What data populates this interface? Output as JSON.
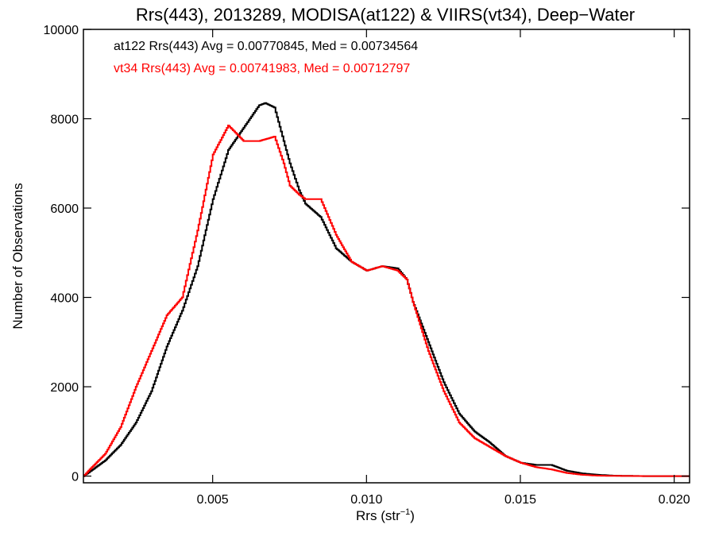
{
  "chart_data": {
    "type": "line",
    "title": "Rrs(443), 2013289, MODISA(at122) & VIIRS(vt34), Deep−Water",
    "xlabel_main": "Rrs (str",
    "xlabel_sup": "−1",
    "xlabel_close": ")",
    "ylabel": "Number of Observations",
    "xlim": [
      0.0008,
      0.0205
    ],
    "ylim": [
      -150,
      10000
    ],
    "xticks": [
      {
        "value": 0.005,
        "label": "0.005"
      },
      {
        "value": 0.01,
        "label": "0.010"
      },
      {
        "value": 0.015,
        "label": "0.015"
      },
      {
        "value": 0.02,
        "label": "0.020"
      }
    ],
    "yticks": [
      {
        "value": 0,
        "label": "0"
      },
      {
        "value": 2000,
        "label": "2000"
      },
      {
        "value": 4000,
        "label": "4000"
      },
      {
        "value": 6000,
        "label": "6000"
      },
      {
        "value": 8000,
        "label": "8000"
      },
      {
        "value": 10000,
        "label": "10000"
      }
    ],
    "legend": [
      {
        "text": "at122 Rrs(443) Avg = 0.00770845, Med = 0.00734564",
        "color": "#000000"
      },
      {
        "text": "vt34 Rrs(443) Avg = 0.00741983, Med = 0.00712797",
        "color": "#ff0000"
      }
    ],
    "series": [
      {
        "color": "#000000",
        "x": [
          0.0008,
          0.001,
          0.0015,
          0.002,
          0.0025,
          0.003,
          0.0035,
          0.004,
          0.0045,
          0.005,
          0.0055,
          0.006,
          0.0065,
          0.0067,
          0.007,
          0.0073,
          0.0075,
          0.0078,
          0.008,
          0.0085,
          0.009,
          0.0095,
          0.01,
          0.0105,
          0.011,
          0.0113,
          0.0115,
          0.012,
          0.0125,
          0.013,
          0.0135,
          0.014,
          0.0145,
          0.015,
          0.0155,
          0.016,
          0.0165,
          0.017,
          0.0175,
          0.018,
          0.019,
          0.02,
          0.0205
        ],
        "y": [
          0,
          100,
          350,
          700,
          1200,
          1900,
          2900,
          3700,
          4700,
          6200,
          7300,
          7800,
          8300,
          8350,
          8250,
          7500,
          7000,
          6400,
          6100,
          5800,
          5100,
          4800,
          4600,
          4700,
          4650,
          4400,
          3900,
          3000,
          2100,
          1400,
          1000,
          750,
          450,
          300,
          250,
          250,
          120,
          60,
          30,
          10,
          0,
          0,
          0
        ]
      },
      {
        "color": "#ff0000",
        "x": [
          0.0008,
          0.001,
          0.0015,
          0.002,
          0.0025,
          0.003,
          0.0035,
          0.004,
          0.0045,
          0.005,
          0.0055,
          0.006,
          0.0065,
          0.007,
          0.0073,
          0.0075,
          0.0078,
          0.008,
          0.0085,
          0.009,
          0.0095,
          0.01,
          0.0105,
          0.011,
          0.0113,
          0.0115,
          0.012,
          0.0125,
          0.013,
          0.0135,
          0.014,
          0.0145,
          0.015,
          0.0155,
          0.016,
          0.0165,
          0.017,
          0.0175,
          0.018,
          0.019,
          0.02,
          0.0205
        ],
        "y": [
          0,
          150,
          500,
          1100,
          2000,
          2800,
          3600,
          4000,
          5500,
          7200,
          7850,
          7500,
          7500,
          7600,
          7000,
          6500,
          6300,
          6200,
          6200,
          5400,
          4800,
          4600,
          4700,
          4600,
          4400,
          3900,
          2800,
          1900,
          1200,
          850,
          650,
          450,
          300,
          200,
          150,
          70,
          30,
          10,
          5,
          0,
          0,
          0
        ]
      }
    ]
  }
}
